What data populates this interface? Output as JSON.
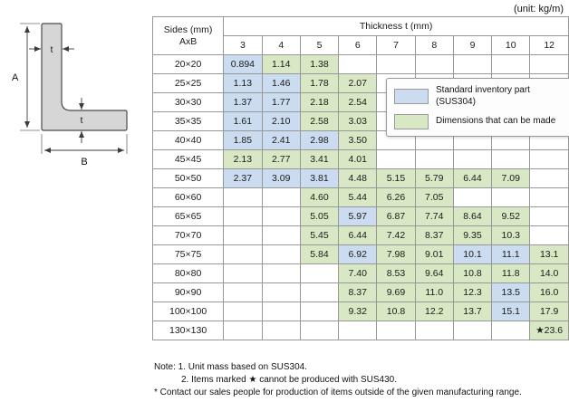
{
  "unit_label": "(unit: kg/m)",
  "colors": {
    "blue": "#ccdcf0",
    "green": "#d9e8c4",
    "header_bg": "#e9e9e9",
    "border": "#979797"
  },
  "diagram": {
    "label_a": "A",
    "label_b": "B",
    "label_t_vertical": "t",
    "label_t_horizontal": "t"
  },
  "table": {
    "corner_line1": "Sides (mm)",
    "corner_line2": "AxB",
    "group_header": "Thickness t (mm)",
    "thickness_cols": [
      "3",
      "4",
      "5",
      "6",
      "7",
      "8",
      "9",
      "10",
      "12"
    ],
    "rows": [
      {
        "size": "20×20",
        "cells": [
          {
            "v": "0.894",
            "c": "blue"
          },
          {
            "v": "1.14",
            "c": "green"
          },
          {
            "v": "1.38",
            "c": "green"
          },
          {
            "v": "",
            "c": ""
          },
          {
            "v": "",
            "c": ""
          },
          {
            "v": "",
            "c": ""
          },
          {
            "v": "",
            "c": ""
          },
          {
            "v": "",
            "c": ""
          },
          {
            "v": "",
            "c": ""
          }
        ]
      },
      {
        "size": "25×25",
        "cells": [
          {
            "v": "1.13",
            "c": "blue"
          },
          {
            "v": "1.46",
            "c": "blue"
          },
          {
            "v": "1.78",
            "c": "green"
          },
          {
            "v": "2.07",
            "c": "green"
          },
          {
            "v": "",
            "c": ""
          },
          {
            "v": "",
            "c": ""
          },
          {
            "v": "",
            "c": ""
          },
          {
            "v": "",
            "c": ""
          },
          {
            "v": "",
            "c": ""
          }
        ]
      },
      {
        "size": "30×30",
        "cells": [
          {
            "v": "1.37",
            "c": "blue"
          },
          {
            "v": "1.77",
            "c": "blue"
          },
          {
            "v": "2.18",
            "c": "green"
          },
          {
            "v": "2.54",
            "c": "green"
          },
          {
            "v": "",
            "c": ""
          },
          {
            "v": "",
            "c": ""
          },
          {
            "v": "",
            "c": ""
          },
          {
            "v": "",
            "c": ""
          },
          {
            "v": "",
            "c": ""
          }
        ]
      },
      {
        "size": "35×35",
        "cells": [
          {
            "v": "1.61",
            "c": "blue"
          },
          {
            "v": "2.10",
            "c": "blue"
          },
          {
            "v": "2.58",
            "c": "green"
          },
          {
            "v": "3.03",
            "c": "green"
          },
          {
            "v": "",
            "c": ""
          },
          {
            "v": "",
            "c": ""
          },
          {
            "v": "",
            "c": ""
          },
          {
            "v": "",
            "c": ""
          },
          {
            "v": "",
            "c": ""
          }
        ]
      },
      {
        "size": "40×40",
        "cells": [
          {
            "v": "1.85",
            "c": "blue"
          },
          {
            "v": "2.41",
            "c": "blue"
          },
          {
            "v": "2.98",
            "c": "blue"
          },
          {
            "v": "3.50",
            "c": "green"
          },
          {
            "v": "",
            "c": ""
          },
          {
            "v": "",
            "c": ""
          },
          {
            "v": "",
            "c": ""
          },
          {
            "v": "",
            "c": ""
          },
          {
            "v": "",
            "c": ""
          }
        ]
      },
      {
        "size": "45×45",
        "cells": [
          {
            "v": "2.13",
            "c": "green"
          },
          {
            "v": "2.77",
            "c": "green"
          },
          {
            "v": "3.41",
            "c": "green"
          },
          {
            "v": "4.01",
            "c": "green"
          },
          {
            "v": "",
            "c": ""
          },
          {
            "v": "",
            "c": ""
          },
          {
            "v": "",
            "c": ""
          },
          {
            "v": "",
            "c": ""
          },
          {
            "v": "",
            "c": ""
          }
        ]
      },
      {
        "size": "50×50",
        "cells": [
          {
            "v": "2.37",
            "c": "blue"
          },
          {
            "v": "3.09",
            "c": "blue"
          },
          {
            "v": "3.81",
            "c": "blue"
          },
          {
            "v": "4.48",
            "c": "green"
          },
          {
            "v": "5.15",
            "c": "green"
          },
          {
            "v": "5.79",
            "c": "green"
          },
          {
            "v": "6.44",
            "c": "green"
          },
          {
            "v": "7.09",
            "c": "green"
          },
          {
            "v": "",
            "c": ""
          }
        ]
      },
      {
        "size": "60×60",
        "cells": [
          {
            "v": "",
            "c": ""
          },
          {
            "v": "",
            "c": ""
          },
          {
            "v": "4.60",
            "c": "green"
          },
          {
            "v": "5.44",
            "c": "green"
          },
          {
            "v": "6.26",
            "c": "green"
          },
          {
            "v": "7.05",
            "c": "green"
          },
          {
            "v": "",
            "c": ""
          },
          {
            "v": "",
            "c": ""
          },
          {
            "v": "",
            "c": ""
          }
        ]
      },
      {
        "size": "65×65",
        "cells": [
          {
            "v": "",
            "c": ""
          },
          {
            "v": "",
            "c": ""
          },
          {
            "v": "5.05",
            "c": "green"
          },
          {
            "v": "5.97",
            "c": "blue"
          },
          {
            "v": "6.87",
            "c": "green"
          },
          {
            "v": "7.74",
            "c": "green"
          },
          {
            "v": "8.64",
            "c": "green"
          },
          {
            "v": "9.52",
            "c": "green"
          },
          {
            "v": "",
            "c": ""
          }
        ]
      },
      {
        "size": "70×70",
        "cells": [
          {
            "v": "",
            "c": ""
          },
          {
            "v": "",
            "c": ""
          },
          {
            "v": "5.45",
            "c": "green"
          },
          {
            "v": "6.44",
            "c": "green"
          },
          {
            "v": "7.42",
            "c": "green"
          },
          {
            "v": "8.37",
            "c": "green"
          },
          {
            "v": "9.35",
            "c": "green"
          },
          {
            "v": "10.3",
            "c": "green"
          },
          {
            "v": "",
            "c": ""
          }
        ]
      },
      {
        "size": "75×75",
        "cells": [
          {
            "v": "",
            "c": ""
          },
          {
            "v": "",
            "c": ""
          },
          {
            "v": "5.84",
            "c": "green"
          },
          {
            "v": "6.92",
            "c": "blue"
          },
          {
            "v": "7.98",
            "c": "green"
          },
          {
            "v": "9.01",
            "c": "green"
          },
          {
            "v": "10.1",
            "c": "blue"
          },
          {
            "v": "11.1",
            "c": "blue"
          },
          {
            "v": "13.1",
            "c": "green"
          }
        ]
      },
      {
        "size": "80×80",
        "cells": [
          {
            "v": "",
            "c": ""
          },
          {
            "v": "",
            "c": ""
          },
          {
            "v": "",
            "c": ""
          },
          {
            "v": "7.40",
            "c": "green"
          },
          {
            "v": "8.53",
            "c": "green"
          },
          {
            "v": "9.64",
            "c": "green"
          },
          {
            "v": "10.8",
            "c": "green"
          },
          {
            "v": "11.8",
            "c": "green"
          },
          {
            "v": "14.0",
            "c": "green"
          }
        ]
      },
      {
        "size": "90×90",
        "cells": [
          {
            "v": "",
            "c": ""
          },
          {
            "v": "",
            "c": ""
          },
          {
            "v": "",
            "c": ""
          },
          {
            "v": "8.37",
            "c": "green"
          },
          {
            "v": "9.69",
            "c": "green"
          },
          {
            "v": "11.0",
            "c": "green"
          },
          {
            "v": "12.3",
            "c": "green"
          },
          {
            "v": "13.5",
            "c": "blue"
          },
          {
            "v": "16.0",
            "c": "green"
          }
        ]
      },
      {
        "size": "100×100",
        "cells": [
          {
            "v": "",
            "c": ""
          },
          {
            "v": "",
            "c": ""
          },
          {
            "v": "",
            "c": ""
          },
          {
            "v": "9.32",
            "c": "green"
          },
          {
            "v": "10.8",
            "c": "green"
          },
          {
            "v": "12.2",
            "c": "green"
          },
          {
            "v": "13.7",
            "c": "green"
          },
          {
            "v": "15.1",
            "c": "blue"
          },
          {
            "v": "17.9",
            "c": "green"
          }
        ]
      },
      {
        "size": "130×130",
        "cells": [
          {
            "v": "",
            "c": ""
          },
          {
            "v": "",
            "c": ""
          },
          {
            "v": "",
            "c": ""
          },
          {
            "v": "",
            "c": ""
          },
          {
            "v": "",
            "c": ""
          },
          {
            "v": "",
            "c": ""
          },
          {
            "v": "",
            "c": ""
          },
          {
            "v": "",
            "c": ""
          },
          {
            "v": "★23.6",
            "c": "green"
          }
        ]
      }
    ]
  },
  "legend": {
    "items": [
      {
        "swatch": "blue",
        "label": "Standard inventory part (SUS304)"
      },
      {
        "swatch": "green",
        "label": "Dimensions that can be made"
      }
    ]
  },
  "notes": [
    "Note: 1. Unit mass based on SUS304.",
    "2. Items marked ★ cannot be produced with SUS430.",
    "* Contact our sales people for production of items outside of the given manufacturing range."
  ]
}
